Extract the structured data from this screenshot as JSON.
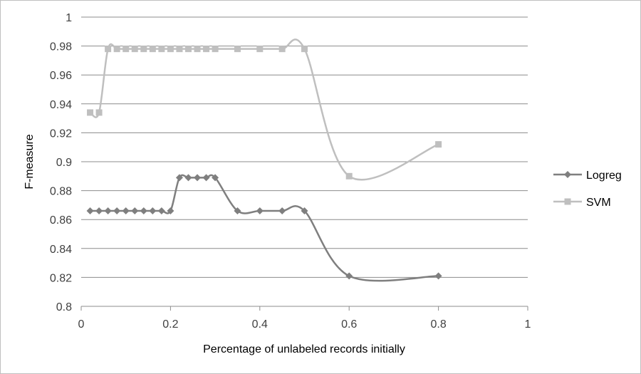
{
  "chart_data": {
    "type": "line",
    "title": "",
    "xlabel": "Percentage of unlabeled records initially",
    "ylabel": "F-measure",
    "xlim": [
      0,
      1
    ],
    "ylim": [
      0.8,
      1
    ],
    "xticks": [
      0,
      0.2,
      0.4,
      0.6,
      0.8,
      1
    ],
    "yticks": [
      0.8,
      0.82,
      0.84,
      0.86,
      0.88,
      0.9,
      0.92,
      0.94,
      0.96,
      0.98,
      1
    ],
    "xtick_labels": [
      "0",
      "0.2",
      "0.4",
      "0.6",
      "0.8",
      "1"
    ],
    "ytick_labels": [
      "0.8",
      "0.82",
      "0.84",
      "0.86",
      "0.88",
      "0.9",
      "0.92",
      "0.94",
      "0.96",
      "0.98",
      "1"
    ],
    "grid": "horizontal",
    "legend_position": "right",
    "smooth": true,
    "series": [
      {
        "name": "Logreg",
        "color": "#7f7f7f",
        "marker": "diamond",
        "x": [
          0.02,
          0.04,
          0.06,
          0.08,
          0.1,
          0.12,
          0.14,
          0.16,
          0.18,
          0.2,
          0.22,
          0.24,
          0.26,
          0.28,
          0.3,
          0.35,
          0.4,
          0.45,
          0.5,
          0.6,
          0.8
        ],
        "y": [
          0.866,
          0.866,
          0.866,
          0.866,
          0.866,
          0.866,
          0.866,
          0.866,
          0.866,
          0.866,
          0.889,
          0.889,
          0.889,
          0.889,
          0.889,
          0.866,
          0.866,
          0.866,
          0.866,
          0.821,
          0.821
        ]
      },
      {
        "name": "SVM",
        "color": "#bfbfbf",
        "marker": "square",
        "x": [
          0.02,
          0.04,
          0.06,
          0.08,
          0.1,
          0.12,
          0.14,
          0.16,
          0.18,
          0.2,
          0.22,
          0.24,
          0.26,
          0.28,
          0.3,
          0.35,
          0.4,
          0.45,
          0.5,
          0.6,
          0.8
        ],
        "y": [
          0.934,
          0.934,
          0.978,
          0.978,
          0.978,
          0.978,
          0.978,
          0.978,
          0.978,
          0.978,
          0.978,
          0.978,
          0.978,
          0.978,
          0.978,
          0.978,
          0.978,
          0.978,
          0.978,
          0.89,
          0.912
        ]
      }
    ]
  }
}
